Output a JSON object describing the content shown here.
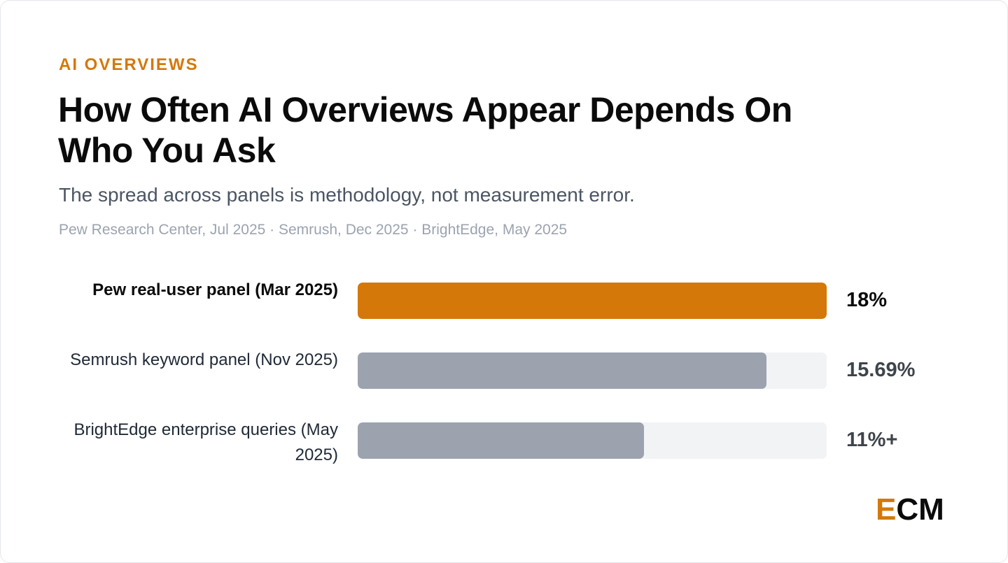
{
  "eyebrow": "AI OVERVIEWS",
  "title": "How Often AI Overviews Appear Depends On Who You Ask",
  "subtitle": "The spread across panels is methodology, not measurement error.",
  "sources": "Pew Research Center, Jul 2025 · Semrush, Dec 2025 · BrightEdge, May 2025",
  "logo": {
    "e": "E",
    "cm": "CM"
  },
  "colors": {
    "accent": "#d4780a",
    "muted_bar": "#9ca3af",
    "track": "#f2f3f5"
  },
  "chart_data": {
    "type": "bar",
    "orientation": "horizontal",
    "xlim": [
      0,
      18
    ],
    "categories": [
      "Pew real-user panel (Mar 2025)",
      "Semrush keyword panel (Nov 2025)",
      "BrightEdge enterprise queries (May 2025)"
    ],
    "values": [
      18,
      15.69,
      11
    ],
    "value_labels": [
      "18%",
      "15.69%",
      "11%+"
    ],
    "highlight_index": 0,
    "grid": false
  }
}
